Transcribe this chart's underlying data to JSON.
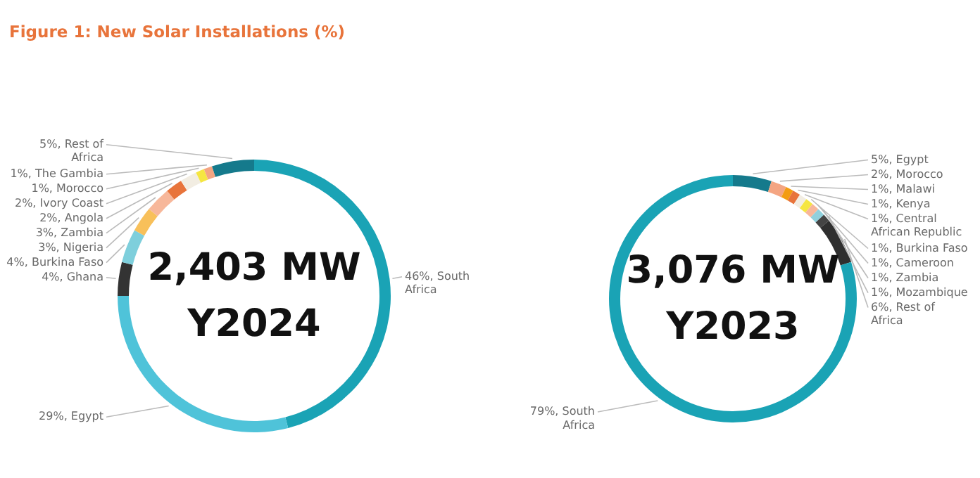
{
  "chart_data": [
    {
      "type": "donut",
      "title": "Figure 1: New Solar Installations (%)",
      "categories": [
        "South Africa",
        "Egypt",
        "Ghana",
        "Burkina Faso",
        "Nigeria",
        "Zambia",
        "Angola",
        "Ivory Coast",
        "Morocco",
        "The Gambia",
        "Rest of Africa"
      ],
      "values": [
        46,
        29,
        4,
        4,
        3,
        3,
        2,
        2,
        1,
        1,
        5
      ],
      "value_labels": [
        "46%",
        "29%",
        "4%",
        "4%",
        "3%",
        "3%",
        "2%",
        "2%",
        "1%",
        "1%",
        "5%"
      ],
      "colors": [
        "#1aa3b5",
        "#4fc3d9",
        "#333333",
        "#7ecfdc",
        "#f8c05a",
        "#f7b79a",
        "#e8743b",
        "#f2ede2",
        "#f5e642",
        "#f4a582",
        "#157a8c"
      ],
      "annotations": [
        "2,403 MW",
        "Y2024"
      ]
    },
    {
      "type": "donut",
      "categories": [
        "Egypt",
        "Morocco",
        "Malawi",
        "Kenya",
        "Central African Republic",
        "Burkina Faso",
        "Cameroon",
        "Zambia",
        "Mozambique",
        "Rest of Africa",
        "South Africa"
      ],
      "values": [
        5,
        2,
        1,
        1,
        1,
        1,
        1,
        1,
        1,
        6,
        79
      ],
      "value_labels": [
        "5%",
        "2%",
        "1%",
        "1%",
        "1%",
        "1%",
        "1%",
        "1%",
        "1%",
        "6%",
        "79%"
      ],
      "colors": [
        "#157a8c",
        "#f4a582",
        "#f39c12",
        "#e8743b",
        "#f2ede2",
        "#f5e642",
        "#f7b79a",
        "#8fd0dc",
        "#444444",
        "#2f2f2f",
        "#1aa3b5"
      ],
      "annotations": [
        "3,076 MW",
        "Y2023"
      ]
    }
  ]
}
